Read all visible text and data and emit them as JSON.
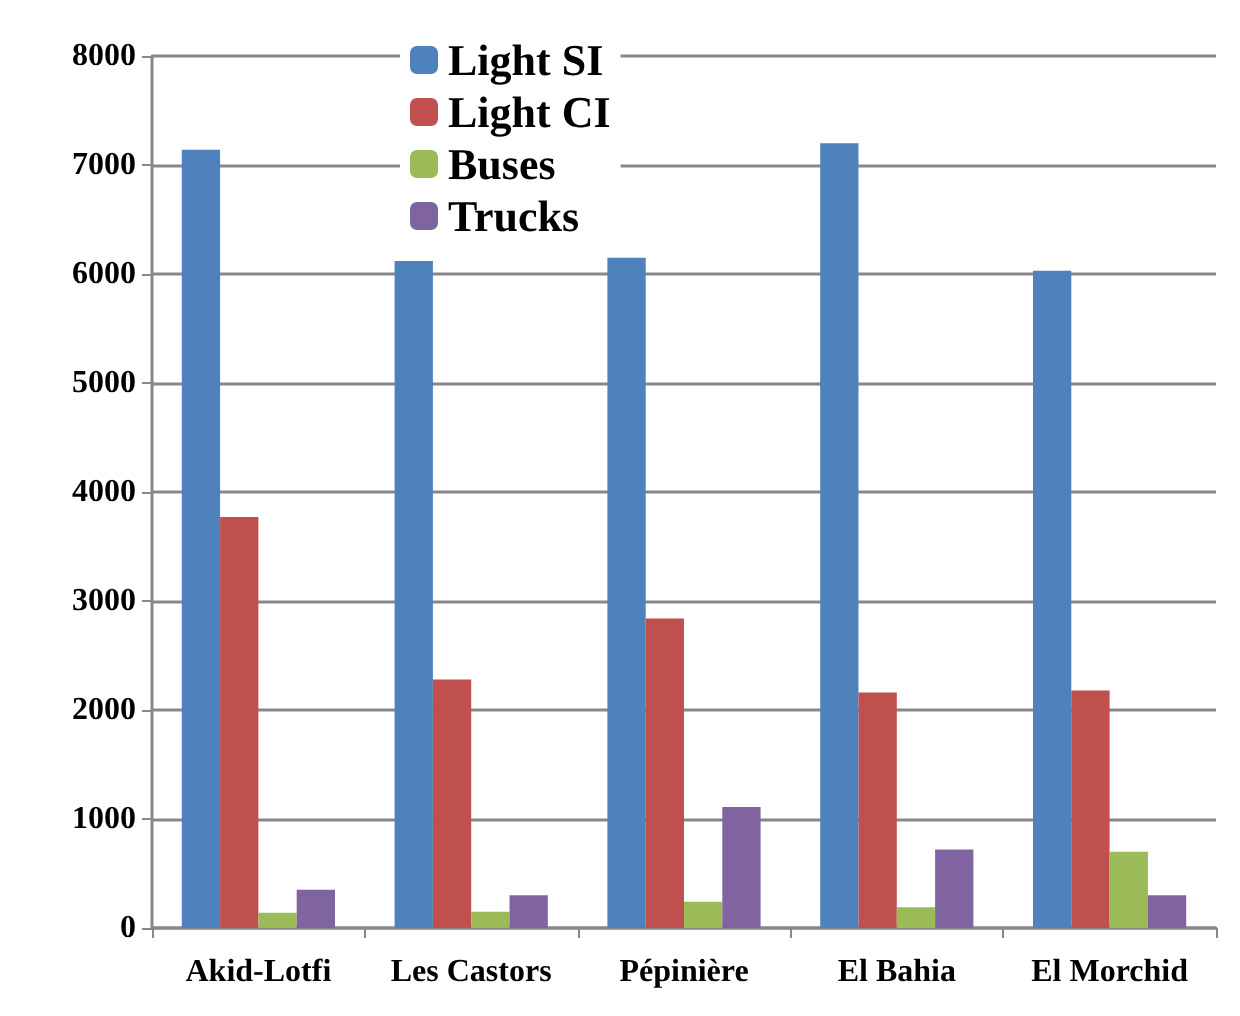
{
  "chart_data": {
    "type": "bar",
    "categories": [
      "Akid-Lotfi",
      "Les Castors",
      "Pépinière",
      "El Bahia",
      "El Morchid"
    ],
    "series": [
      {
        "name": "Light SI",
        "color": "#4f81bd",
        "values": [
          7140,
          6120,
          6150,
          7200,
          6030
        ]
      },
      {
        "name": "Light CI",
        "color": "#c0504d",
        "values": [
          3770,
          2280,
          2840,
          2160,
          2180
        ]
      },
      {
        "name": "Buses",
        "color": "#9bbb59",
        "values": [
          140,
          150,
          240,
          190,
          700
        ]
      },
      {
        "name": "Trucks",
        "color": "#8064a2",
        "values": [
          350,
          300,
          1110,
          720,
          300
        ]
      }
    ],
    "ylim": [
      0,
      8000
    ],
    "yticks": [
      0,
      1000,
      2000,
      3000,
      4000,
      5000,
      6000,
      7000,
      8000
    ],
    "grid": "y",
    "legend": "top"
  }
}
